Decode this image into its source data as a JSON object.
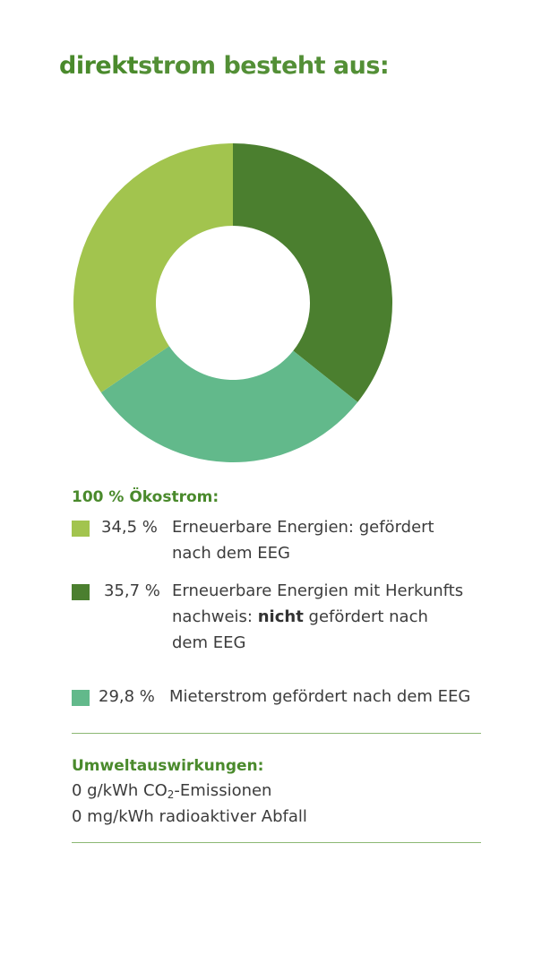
{
  "title": {
    "bold": "direkt",
    "rest": "strom besteht aus:"
  },
  "colors": {
    "light_green": "#a2c44e",
    "dark_green": "#4b7f2f",
    "teal_green": "#62b98b",
    "title_green": "#4a8a2c"
  },
  "legend": {
    "heading": "100 % Ökostrom:",
    "items": [
      {
        "pct": "34,5 %",
        "line1": "Erneuerbare Energien: gefördert",
        "line2": "nach dem EEG"
      },
      {
        "pct": "35,7 %",
        "line1": "Erneuerbare Energien mit Herkunfts",
        "line2_bold": "nicht",
        "line2_prefix": "nachweis: ",
        "line2_suffix": " gefördert nach",
        "line3": "dem EEG"
      },
      {
        "pct": "29,8 %",
        "line1": "Mieterstrom gefördert nach dem EEG"
      }
    ]
  },
  "impact": {
    "heading": "Umweltauswirkungen:",
    "line1_prefix": "0 g/kWh CO",
    "line1_sub": "2",
    "line1_suffix": "-Emissionen",
    "line2": "0 mg/kWh radioaktiver Abfall"
  },
  "chart_data": {
    "type": "pie",
    "donut": true,
    "categories": [
      "Erneuerbare Energien mit Herkunftsnachweis: nicht gefördert nach dem EEG",
      "Mieterstrom gefördert nach dem EEG",
      "Erneuerbare Energien: gefördert nach dem EEG"
    ],
    "values": [
      35.7,
      29.8,
      34.5
    ],
    "colors": [
      "#4b7f2f",
      "#62b98b",
      "#a2c44e"
    ],
    "start": "top",
    "direction": "clockwise",
    "legend": "bottom"
  }
}
